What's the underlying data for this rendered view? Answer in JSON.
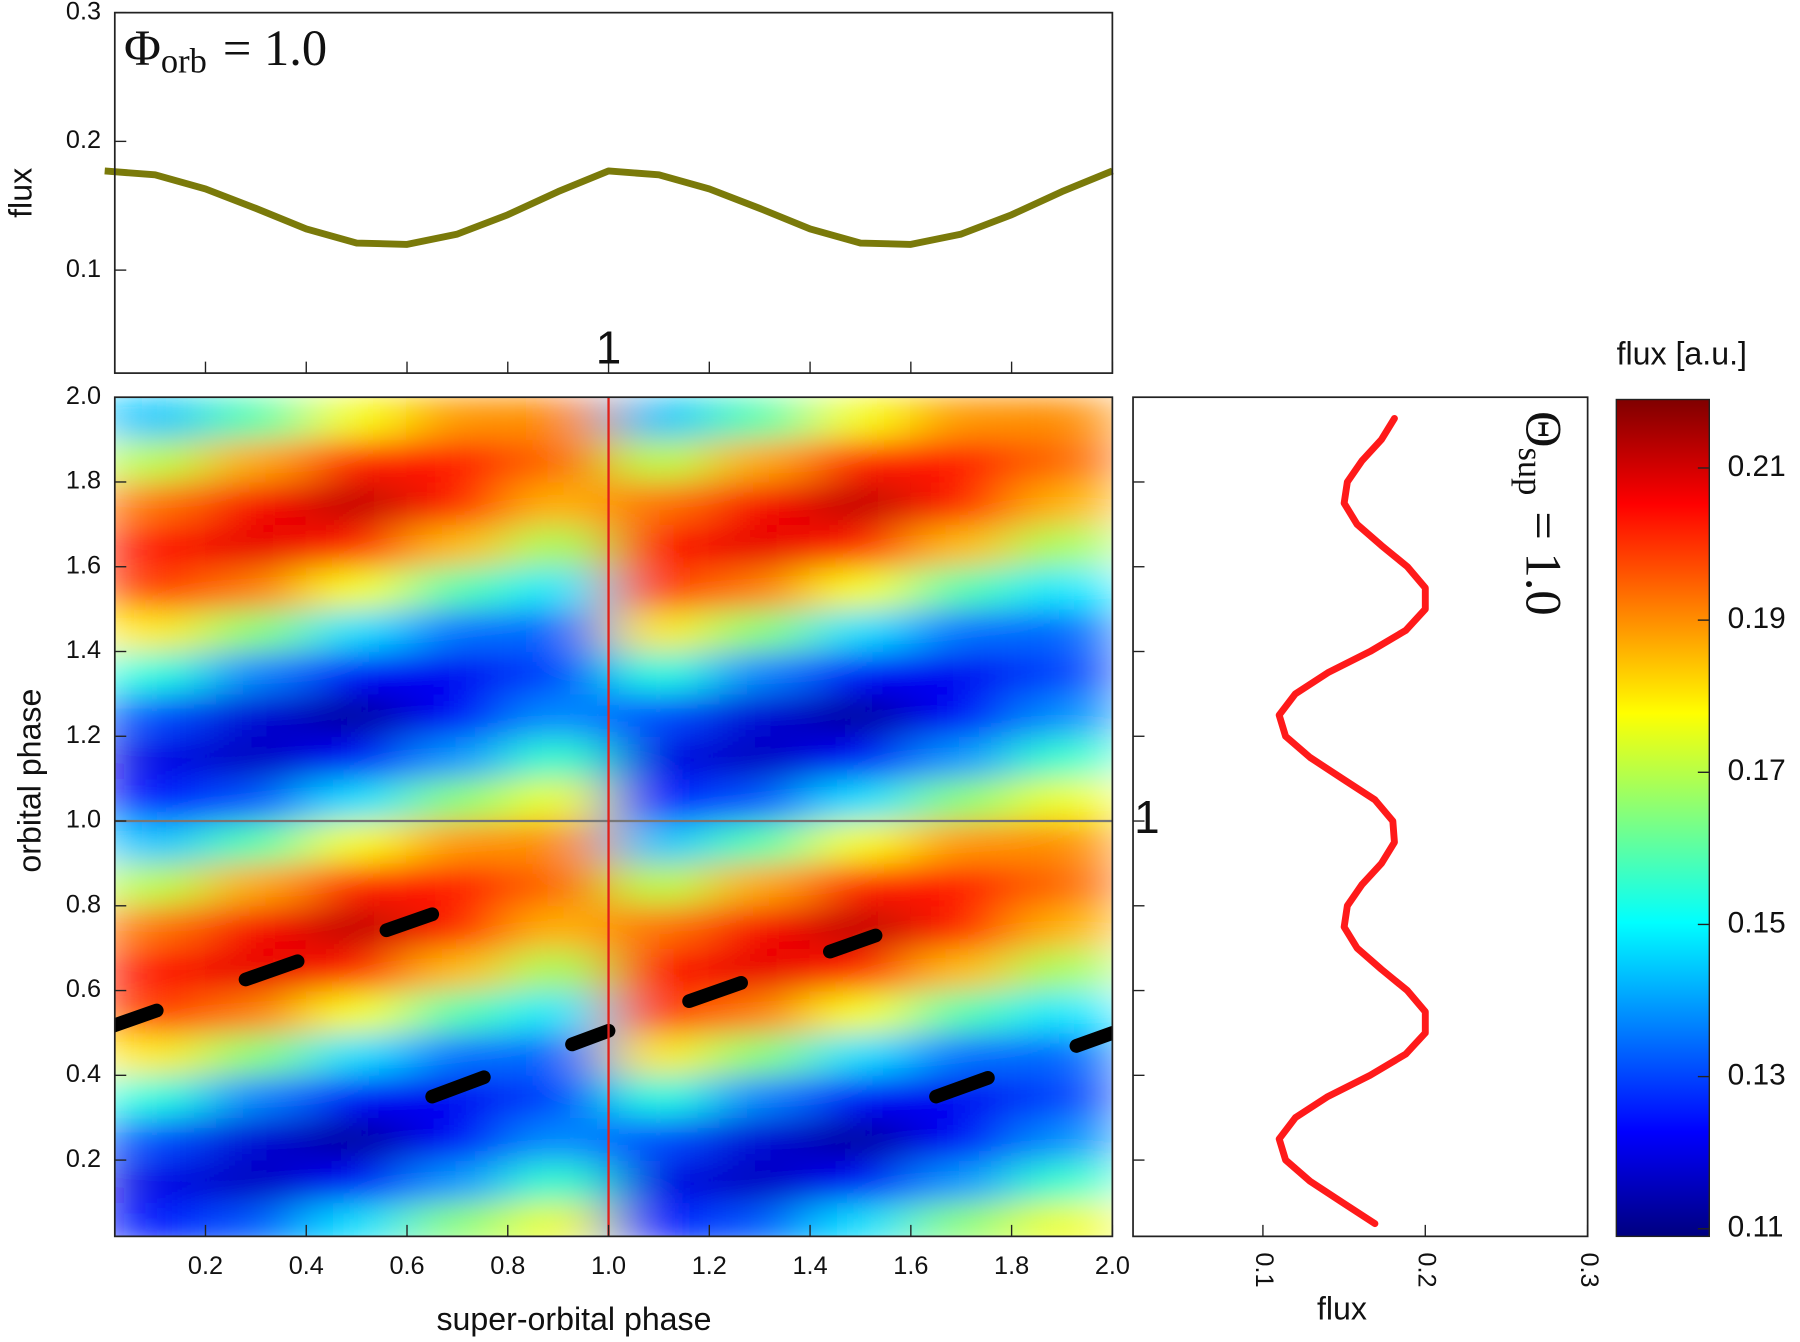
{
  "chart_data": [
    {
      "type": "line",
      "ylabel": "flux",
      "annotation": {
        "symbol": "Φ",
        "subscript": "orb",
        "text": "= 1.0"
      },
      "x": [
        0,
        0.1,
        0.2,
        0.3,
        0.4,
        0.5,
        0.6,
        0.7,
        0.8,
        0.9,
        1.0,
        1.1,
        1.2,
        1.3,
        1.4,
        1.5,
        1.6,
        1.7,
        1.8,
        1.9,
        2.0
      ],
      "series": [
        {
          "color": "#7a7a0a",
          "values": [
            0.177,
            0.174,
            0.163,
            0.148,
            0.132,
            0.121,
            0.12,
            0.128,
            0.143,
            0.161,
            0.177,
            0.174,
            0.163,
            0.148,
            0.132,
            0.121,
            0.12,
            0.128,
            0.143,
            0.161,
            0.177
          ]
        }
      ],
      "xlim": [
        0.02,
        2.0
      ],
      "xticks": [
        0.2,
        0.4,
        0.6,
        0.8,
        1.0,
        1.2,
        1.4,
        1.6,
        1.8,
        2.0
      ],
      "ylim": [
        0.02,
        0.3
      ],
      "yticks": [
        0.1,
        0.2,
        0.3
      ]
    },
    {
      "type": "heatmap",
      "xlabel": "super-orbital phase",
      "ylabel": "orbital phase",
      "x": [
        0.1,
        0.3,
        0.5,
        0.7,
        0.9,
        1.1,
        1.3,
        1.5,
        1.7,
        1.9
      ],
      "y": [
        0.05,
        0.15,
        0.25,
        0.35,
        0.45,
        0.55,
        0.65,
        0.75,
        0.85,
        0.95,
        1.05,
        1.15,
        1.25,
        1.35,
        1.45,
        1.55,
        1.65,
        1.75,
        1.85,
        1.95
      ],
      "z": [
        [
          0.125,
          0.132,
          0.147,
          0.165,
          0.176,
          0.125,
          0.132,
          0.147,
          0.165,
          0.176
        ],
        [
          0.12,
          0.116,
          0.122,
          0.139,
          0.156,
          0.12,
          0.116,
          0.122,
          0.139,
          0.156
        ],
        [
          0.131,
          0.118,
          0.112,
          0.122,
          0.138,
          0.131,
          0.118,
          0.112,
          0.122,
          0.138
        ],
        [
          0.154,
          0.137,
          0.122,
          0.121,
          0.13,
          0.154,
          0.137,
          0.122,
          0.121,
          0.13
        ],
        [
          0.18,
          0.165,
          0.147,
          0.135,
          0.134,
          0.18,
          0.165,
          0.147,
          0.135,
          0.134
        ],
        [
          0.199,
          0.192,
          0.177,
          0.159,
          0.148,
          0.199,
          0.192,
          0.177,
          0.159,
          0.148
        ],
        [
          0.204,
          0.208,
          0.202,
          0.185,
          0.168,
          0.204,
          0.208,
          0.202,
          0.185,
          0.168
        ],
        [
          0.193,
          0.206,
          0.212,
          0.202,
          0.186,
          0.193,
          0.206,
          0.212,
          0.202,
          0.186
        ],
        [
          0.17,
          0.187,
          0.202,
          0.203,
          0.194,
          0.17,
          0.187,
          0.202,
          0.203,
          0.194
        ],
        [
          0.144,
          0.159,
          0.177,
          0.189,
          0.19,
          0.144,
          0.159,
          0.177,
          0.189,
          0.19
        ],
        [
          0.125,
          0.132,
          0.147,
          0.165,
          0.176,
          0.125,
          0.132,
          0.147,
          0.165,
          0.176
        ],
        [
          0.12,
          0.116,
          0.122,
          0.139,
          0.156,
          0.12,
          0.116,
          0.122,
          0.139,
          0.156
        ],
        [
          0.131,
          0.118,
          0.112,
          0.122,
          0.138,
          0.131,
          0.118,
          0.112,
          0.122,
          0.138
        ],
        [
          0.154,
          0.137,
          0.122,
          0.121,
          0.13,
          0.154,
          0.137,
          0.122,
          0.121,
          0.13
        ],
        [
          0.18,
          0.165,
          0.147,
          0.135,
          0.134,
          0.18,
          0.165,
          0.147,
          0.135,
          0.134
        ],
        [
          0.199,
          0.192,
          0.177,
          0.159,
          0.148,
          0.199,
          0.192,
          0.177,
          0.159,
          0.148
        ],
        [
          0.204,
          0.208,
          0.202,
          0.185,
          0.168,
          0.204,
          0.208,
          0.202,
          0.185,
          0.168
        ],
        [
          0.193,
          0.206,
          0.212,
          0.202,
          0.186,
          0.193,
          0.206,
          0.212,
          0.202,
          0.186
        ],
        [
          0.17,
          0.187,
          0.202,
          0.203,
          0.194,
          0.17,
          0.187,
          0.202,
          0.203,
          0.194
        ],
        [
          0.144,
          0.159,
          0.177,
          0.189,
          0.19,
          0.144,
          0.159,
          0.177,
          0.189,
          0.19
        ]
      ],
      "colormap": "jet",
      "zlim": [
        0.109,
        0.219
      ],
      "xlim": [
        0.02,
        2.0
      ],
      "xticks": [
        0.2,
        0.4,
        0.6,
        0.8,
        {
          "value": 1,
          "label": "1.0"
        },
        1.2,
        1.4,
        1.6,
        1.8,
        {
          "value": 2,
          "label": "2.0"
        }
      ],
      "ylim": [
        0.02,
        2.0
      ],
      "yticks": [
        0.2,
        0.4,
        0.6,
        0.8,
        {
          "value": 1,
          "label": "1.0"
        },
        1.2,
        1.4,
        1.6,
        1.8,
        {
          "value": 2,
          "label": "2.0"
        }
      ],
      "overlay_lines": {
        "color": "#000000",
        "style": "dashed",
        "segments": [
          {
            "x": [
              0,
              0.65
            ],
            "y": [
              0.51,
              0.78
            ]
          },
          {
            "x": [
              1.16,
              1.53
            ],
            "y": [
              0.575,
              0.73
            ]
          },
          {
            "x": [
              0.65,
              1.0
            ],
            "y": [
              0.35,
              0.505
            ]
          },
          {
            "x": [
              1.65,
              2.0
            ],
            "y": [
              0.35,
              0.5
            ]
          }
        ]
      },
      "crosshair": {
        "x": 1.0,
        "y": 1.0,
        "x_color": "#e0201a",
        "y_color": "#777777",
        "x_label": "1",
        "y_label": "1"
      }
    },
    {
      "type": "line",
      "orientation": "vertical",
      "xlabel": "flux",
      "annotation": {
        "symbol": "Θ",
        "subscript": "sup",
        "text": "= 1.0"
      },
      "y": [
        0.05,
        0.1,
        0.15,
        0.2,
        0.25,
        0.3,
        0.35,
        0.4,
        0.45,
        0.5,
        0.55,
        0.6,
        0.65,
        0.7,
        0.75,
        0.8,
        0.85,
        0.9,
        0.95,
        1.0,
        1.05,
        1.1,
        1.15,
        1.2,
        1.25,
        1.3,
        1.35,
        1.4,
        1.45,
        1.5,
        1.55,
        1.6,
        1.65,
        1.7,
        1.75,
        1.8,
        1.85,
        1.9,
        1.95
      ],
      "series": [
        {
          "color": "#ff1a1a",
          "values": [
            0.169,
            0.149,
            0.129,
            0.114,
            0.11,
            0.12,
            0.14,
            0.166,
            0.188,
            0.2,
            0.2,
            0.189,
            0.173,
            0.158,
            0.15,
            0.152,
            0.161,
            0.173,
            0.181,
            0.18,
            0.169,
            0.149,
            0.129,
            0.114,
            0.11,
            0.12,
            0.14,
            0.166,
            0.188,
            0.2,
            0.2,
            0.189,
            0.173,
            0.158,
            0.15,
            0.152,
            0.161,
            0.173,
            0.181
          ]
        }
      ],
      "xlim": [
        0.02,
        0.3
      ],
      "xticks": [
        0.1,
        0.2,
        0.3
      ],
      "ylim": [
        0.02,
        2.0
      ],
      "yticks": [
        0.2,
        0.4,
        0.6,
        0.8,
        1.0,
        1.2,
        1.4,
        1.6,
        1.8,
        2.0
      ]
    },
    {
      "type": "colorbar",
      "title": "flux [a.u.]",
      "colormap": "jet",
      "zlim": [
        0.109,
        0.219
      ],
      "zticks": [
        0.11,
        0.13,
        0.15,
        0.17,
        0.19,
        0.21
      ]
    }
  ]
}
